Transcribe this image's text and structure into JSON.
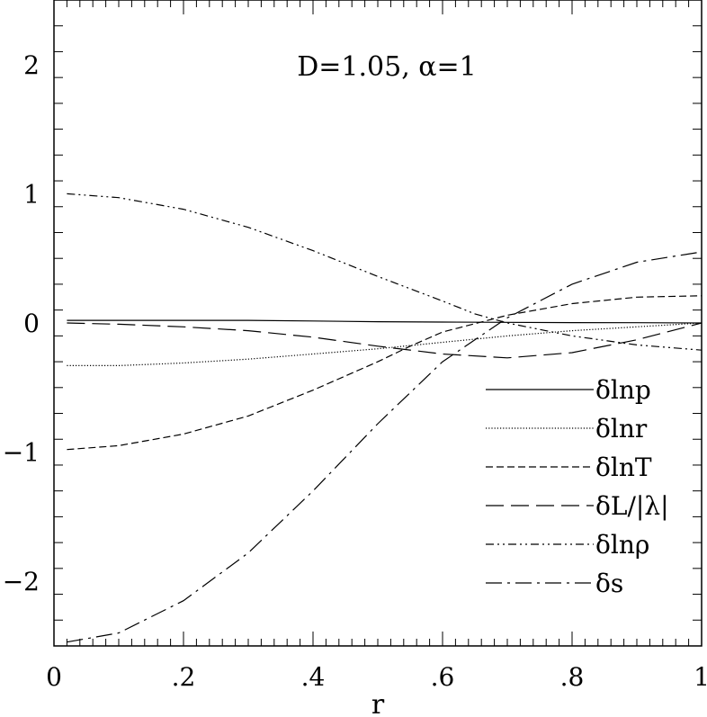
{
  "chart_data": {
    "type": "line",
    "title": "D=1.05,  α=1",
    "xlabel": "r",
    "ylabel": "",
    "xlim": [
      0,
      1
    ],
    "ylim": [
      -2.5,
      2.5
    ],
    "grid": false,
    "legend_position": "bottom-right",
    "x_ticks": [
      {
        "value": 0,
        "label": "0"
      },
      {
        "value": 0.2,
        "label": ".2"
      },
      {
        "value": 0.4,
        "label": ".4"
      },
      {
        "value": 0.6,
        "label": ".6"
      },
      {
        "value": 0.8,
        "label": ".8"
      },
      {
        "value": 1,
        "label": "1"
      }
    ],
    "y_ticks": [
      {
        "value": -2,
        "label": "−2"
      },
      {
        "value": -1,
        "label": "−1"
      },
      {
        "value": 0,
        "label": "0"
      },
      {
        "value": 1,
        "label": "1"
      },
      {
        "value": 2,
        "label": "2"
      }
    ],
    "series": [
      {
        "name": "δlnp",
        "dash": "solid",
        "x": [
          0.02,
          0.1,
          0.2,
          0.3,
          0.4,
          0.5,
          0.6,
          0.7,
          0.8,
          0.9,
          1.0
        ],
        "y": [
          0.02,
          0.02,
          0.02,
          0.02,
          0.015,
          0.01,
          0.007,
          0.005,
          0.003,
          0.002,
          0.0
        ]
      },
      {
        "name": "δlnr",
        "dash": "dotted",
        "x": [
          0.02,
          0.1,
          0.2,
          0.3,
          0.4,
          0.5,
          0.6,
          0.7,
          0.8,
          0.9,
          1.0
        ],
        "y": [
          -0.33,
          -0.33,
          -0.31,
          -0.28,
          -0.24,
          -0.2,
          -0.15,
          -0.1,
          -0.06,
          -0.03,
          0.0
        ]
      },
      {
        "name": "δlnT",
        "dash": "short-dash",
        "x": [
          0.02,
          0.1,
          0.2,
          0.3,
          0.4,
          0.5,
          0.55,
          0.6,
          0.7,
          0.8,
          0.9,
          1.0
        ],
        "y": [
          -0.98,
          -0.95,
          -0.86,
          -0.72,
          -0.52,
          -0.3,
          -0.18,
          -0.07,
          0.06,
          0.15,
          0.2,
          0.21
        ]
      },
      {
        "name": "δL/|λ|",
        "dash": "long-dash",
        "x": [
          0.02,
          0.1,
          0.2,
          0.3,
          0.4,
          0.5,
          0.6,
          0.7,
          0.8,
          0.9,
          1.0
        ],
        "y": [
          0.0,
          -0.01,
          -0.03,
          -0.06,
          -0.11,
          -0.18,
          -0.24,
          -0.27,
          -0.23,
          -0.13,
          0.0
        ]
      },
      {
        "name": "δlnρ",
        "dash": "dash-dot-dot",
        "x": [
          0.02,
          0.1,
          0.2,
          0.3,
          0.4,
          0.5,
          0.6,
          0.65,
          0.7,
          0.8,
          0.9,
          1.0
        ],
        "y": [
          1.0,
          0.97,
          0.88,
          0.74,
          0.56,
          0.36,
          0.17,
          0.07,
          0.0,
          -0.1,
          -0.17,
          -0.21
        ]
      },
      {
        "name": "δs",
        "dash": "dash-dot",
        "x": [
          0.02,
          0.1,
          0.2,
          0.3,
          0.4,
          0.5,
          0.6,
          0.7,
          0.8,
          0.9,
          1.0
        ],
        "y": [
          -2.47,
          -2.4,
          -2.15,
          -1.78,
          -1.3,
          -0.78,
          -0.3,
          0.04,
          0.3,
          0.47,
          0.55
        ]
      }
    ]
  }
}
